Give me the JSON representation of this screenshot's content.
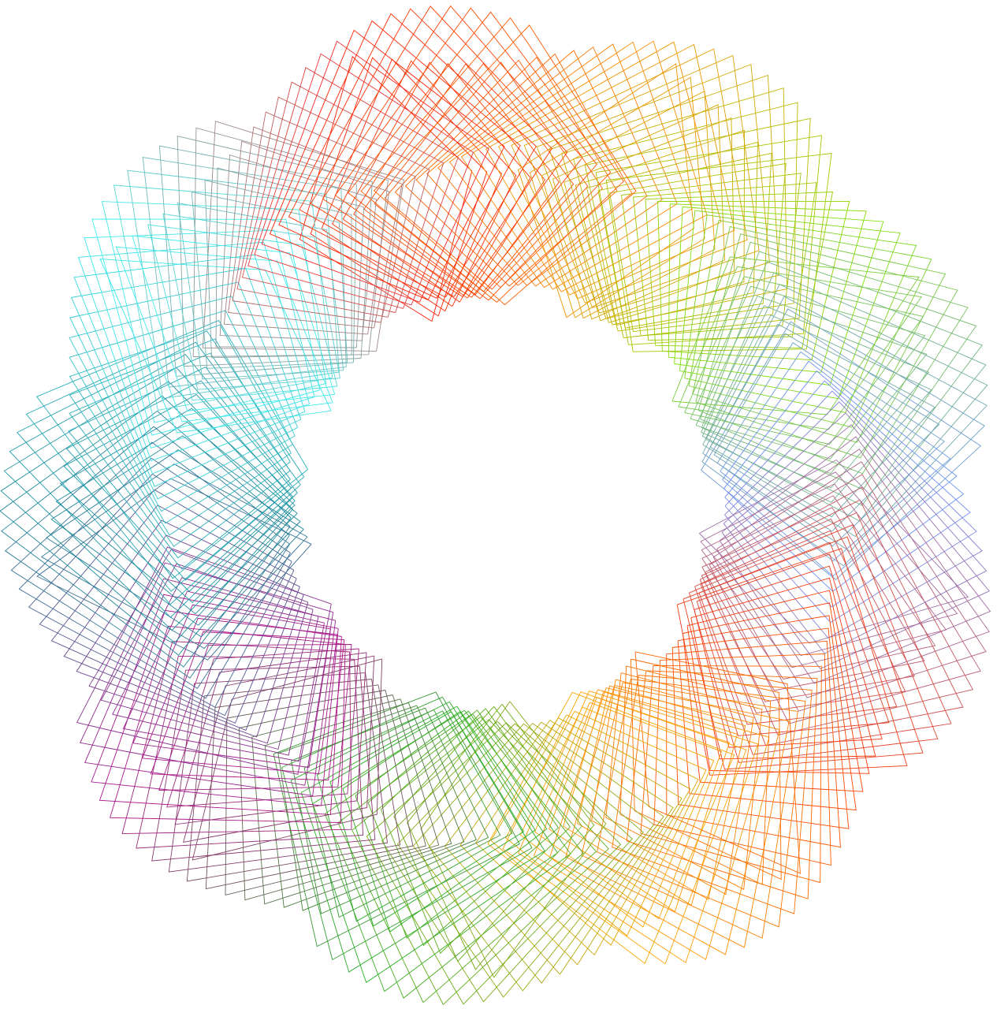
{
  "artwork": {
    "kind": "string-art line mesh ring",
    "lobes": 9,
    "background": "#ffffff",
    "palette": [
      "#ff1a00",
      "#ff8c00",
      "#7fe000",
      "#6a8fff",
      "#ff3300",
      "#ffa500",
      "#22b022",
      "#b0108a",
      "#1a8a9a",
      "#40f0f0",
      "#ff2020"
    ]
  }
}
